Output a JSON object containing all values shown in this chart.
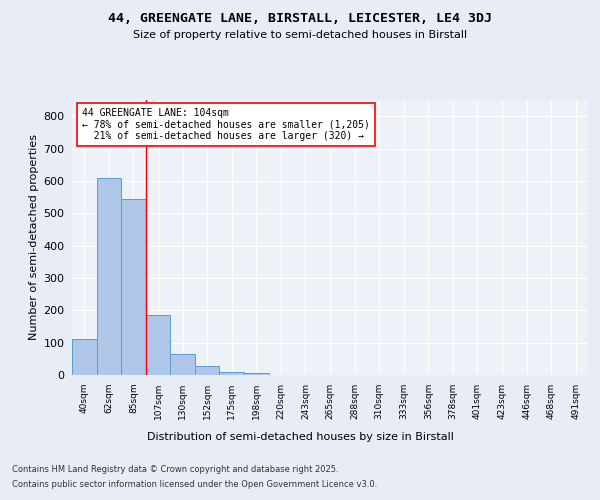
{
  "title_line1": "44, GREENGATE LANE, BIRSTALL, LEICESTER, LE4 3DJ",
  "title_line2": "Size of property relative to semi-detached houses in Birstall",
  "xlabel": "Distribution of semi-detached houses by size in Birstall",
  "ylabel": "Number of semi-detached properties",
  "categories": [
    "40sqm",
    "62sqm",
    "85sqm",
    "107sqm",
    "130sqm",
    "152sqm",
    "175sqm",
    "198sqm",
    "220sqm",
    "243sqm",
    "265sqm",
    "288sqm",
    "310sqm",
    "333sqm",
    "356sqm",
    "378sqm",
    "401sqm",
    "423sqm",
    "446sqm",
    "468sqm",
    "491sqm"
  ],
  "values": [
    110,
    610,
    545,
    185,
    65,
    28,
    10,
    5,
    0,
    0,
    0,
    0,
    0,
    0,
    0,
    0,
    0,
    0,
    0,
    0,
    0
  ],
  "bar_color": "#aec6e8",
  "bar_edge_color": "#5a9bd4",
  "property_sqm": 104,
  "pct_smaller": 78,
  "count_smaller": 1205,
  "pct_larger": 21,
  "count_larger": 320,
  "annotation_text": "44 GREENGATE LANE: 104sqm\n← 78% of semi-detached houses are smaller (1,205)\n  21% of semi-detached houses are larger (320) →",
  "ylim": [
    0,
    850
  ],
  "yticks": [
    0,
    100,
    200,
    300,
    400,
    500,
    600,
    700,
    800
  ],
  "bg_color": "#e8edf5",
  "plot_bg_color": "#edf1f8",
  "grid_color": "#ffffff",
  "footer_line1": "Contains HM Land Registry data © Crown copyright and database right 2025.",
  "footer_line2": "Contains public sector information licensed under the Open Government Licence v3.0."
}
